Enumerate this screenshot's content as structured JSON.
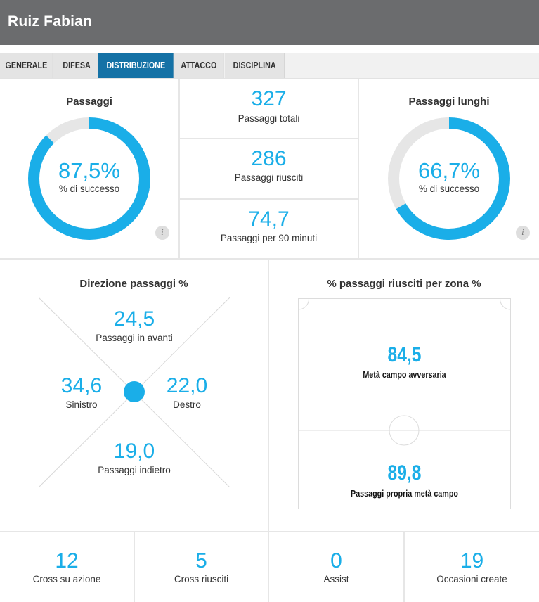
{
  "player": {
    "name": "Ruiz Fabian"
  },
  "tabs": [
    {
      "label": "GENERALE",
      "active": false
    },
    {
      "label": "DIFESA",
      "active": false
    },
    {
      "label": "DISTRIBUZIONE",
      "active": true
    },
    {
      "label": "ATTACCO",
      "active": false
    },
    {
      "label": "DISCIPLINA",
      "active": false
    }
  ],
  "passaggi": {
    "title": "Passaggi",
    "value": "87,5%",
    "fraction": 0.875,
    "label": "% di successo",
    "info": "i"
  },
  "passaggi_stats": [
    {
      "value": "327",
      "label": "Passaggi totali"
    },
    {
      "value": "286",
      "label": "Passaggi riusciti"
    },
    {
      "value": "74,7",
      "label": "Passaggi per 90 minuti"
    }
  ],
  "passaggi_lunghi": {
    "title": "Passaggi lunghi",
    "value": "66,7%",
    "fraction": 0.667,
    "label": "% di successo",
    "info": "i"
  },
  "direzione": {
    "title": "Direzione passaggi %",
    "avanti": {
      "value": "24,5",
      "label": "Passaggi in avanti"
    },
    "sinistro": {
      "value": "34,6",
      "label": "Sinistro"
    },
    "destro": {
      "value": "22,0",
      "label": "Destro"
    },
    "indietro": {
      "value": "19,0",
      "label": "Passaggi indietro"
    }
  },
  "zona": {
    "title": "% passaggi riusciti per zona %",
    "avversaria": {
      "value": "84,5",
      "label": "Metà campo avversaria"
    },
    "propria": {
      "value": "89,8",
      "label": "Passaggi propria metà campo"
    }
  },
  "bottom_stats": [
    {
      "value": "12",
      "label": "Cross su azione"
    },
    {
      "value": "5",
      "label": "Cross riusciti"
    },
    {
      "value": "0",
      "label": "Assist"
    },
    {
      "value": "19",
      "label": "Occasioni create"
    }
  ],
  "colors": {
    "accent": "#1aaee8",
    "tab_active": "#1572a6",
    "header": "#6b6c6e",
    "ring_track": "#e6e6e6"
  }
}
